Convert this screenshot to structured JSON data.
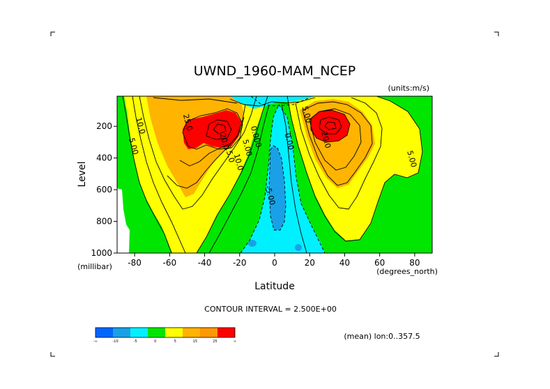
{
  "chart_data": {
    "type": "heatmap",
    "title": "UWND_1960-MAM_NCEP",
    "units_note": "(units:m/s)",
    "xlabel": "Latitude",
    "x_units": "(degrees_north)",
    "ylabel": "Level",
    "y_units": "(millibar)",
    "xlim": [
      -90,
      90
    ],
    "ylim": [
      1000,
      10
    ],
    "y_inverted": true,
    "x_ticks": [
      -80,
      -60,
      -40,
      -20,
      0,
      20,
      40,
      60,
      80
    ],
    "x_tick_labels": [
      "-80",
      "-60",
      "-40",
      "-20",
      "0",
      "20",
      "40",
      "60",
      "80"
    ],
    "y_ticks": [
      200,
      400,
      600,
      800,
      1000
    ],
    "y_tick_labels": [
      "200",
      "400",
      "600",
      "800",
      "1000"
    ],
    "contour_interval_text": "CONTOUR INTERVAL = 2.500E+00",
    "subset_note": "(mean) lon:0..357.5",
    "colorbar": {
      "labels": [
        "-∞",
        "-10",
        "-5",
        "0",
        "5",
        "15",
        "25",
        "∞"
      ],
      "colors": [
        "#0066ff",
        "#1aa0e6",
        "#00f0ff",
        "#00e600",
        "#ffff00",
        "#ffb400",
        "#ff9900",
        "#ff0000"
      ]
    },
    "contour_labels": [
      {
        "text": "10.0",
        "lat": -78,
        "lev": 200
      },
      {
        "text": "5.00",
        "lat": -82,
        "lev": 330
      },
      {
        "text": "25.0",
        "lat": -51,
        "lev": 180
      },
      {
        "text": "20.0",
        "lat": -30,
        "lev": 300
      },
      {
        "text": "15.0",
        "lat": -27,
        "lev": 380
      },
      {
        "text": "10.0",
        "lat": -22,
        "lev": 430
      },
      {
        "text": "5.00",
        "lat": -17,
        "lev": 340
      },
      {
        "text": "0.000",
        "lat": -12,
        "lev": 270
      },
      {
        "text": "-5.00",
        "lat": -4,
        "lev": 640
      },
      {
        "text": "0.00",
        "lat": 7,
        "lev": 300
      },
      {
        "text": "20.0",
        "lat": 28,
        "lev": 290
      },
      {
        "text": "5.00",
        "lat": 77,
        "lev": 410
      },
      {
        "text": "5.00",
        "lat": 17,
        "lev": 130
      }
    ],
    "jets": [
      {
        "lat": -30,
        "lev": 200,
        "max_value": 25
      },
      {
        "lat": 30,
        "lev": 200,
        "max_value": 25
      }
    ],
    "easterly_region": {
      "lat_range": [
        -20,
        25
      ],
      "min_value": -5
    }
  }
}
